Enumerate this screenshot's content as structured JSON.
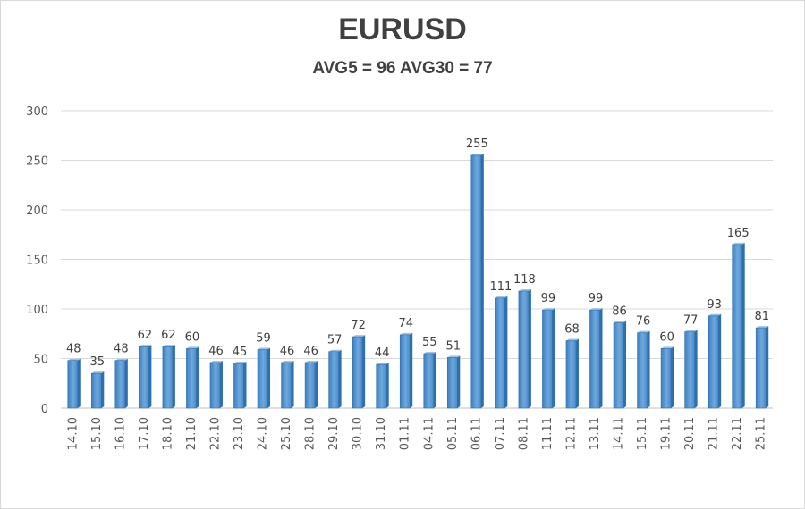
{
  "chart_data": {
    "type": "bar",
    "title": "EURUSD",
    "subtitle": "AVG5 = 96 AVG30 = 77",
    "categories": [
      "14.10",
      "15.10",
      "16.10",
      "17.10",
      "18.10",
      "21.10",
      "22.10",
      "23.10",
      "24.10",
      "25.10",
      "28.10",
      "29.10",
      "30.10",
      "31.10",
      "01.11",
      "04.11",
      "05.11",
      "06.11",
      "07.11",
      "08.11",
      "11.11",
      "12.11",
      "13.11",
      "14.11",
      "15.11",
      "19.11",
      "20.11",
      "21.11",
      "22.11",
      "25.11"
    ],
    "values": [
      48,
      35,
      48,
      62,
      62,
      60,
      46,
      45,
      59,
      46,
      46,
      57,
      72,
      44,
      74,
      55,
      51,
      255,
      111,
      118,
      99,
      68,
      99,
      86,
      76,
      60,
      77,
      93,
      165,
      81
    ],
    "ylim": [
      0,
      300
    ],
    "yticks": [
      0,
      50,
      100,
      150,
      200,
      250,
      300
    ],
    "grid": true,
    "bar_color": "#5b9bd5",
    "bar_dark_color": "#2e6fad"
  }
}
